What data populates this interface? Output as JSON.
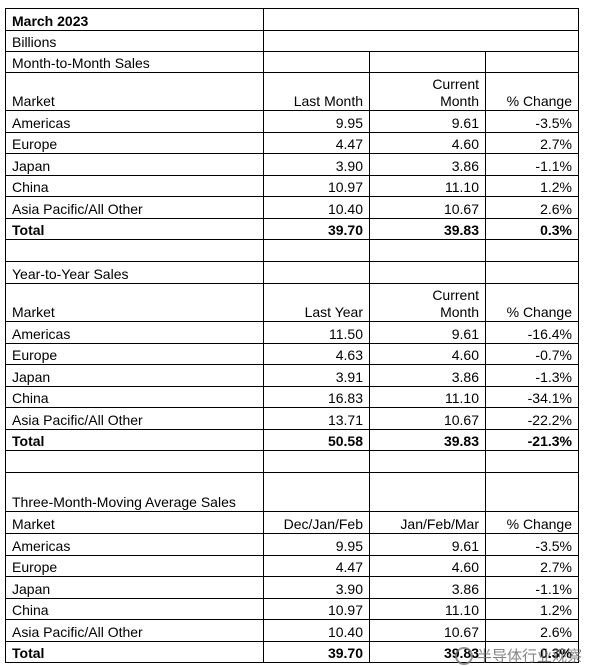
{
  "header": {
    "title": "March 2023",
    "unit": "Billions"
  },
  "sections": [
    {
      "title": "Month-to-Month Sales",
      "columns": [
        "Market",
        "Last Month",
        "Current Month",
        "% Change"
      ],
      "rows": [
        [
          "Americas",
          "9.95",
          "9.61",
          "-3.5%"
        ],
        [
          "Europe",
          "4.47",
          "4.60",
          "2.7%"
        ],
        [
          "Japan",
          "3.90",
          "3.86",
          "-1.1%"
        ],
        [
          "China",
          "10.97",
          "11.10",
          "1.2%"
        ],
        [
          "Asia Pacific/All Other",
          "10.40",
          "10.67",
          "2.6%"
        ]
      ],
      "total": [
        "Total",
        "39.70",
        "39.83",
        "0.3%"
      ]
    },
    {
      "title": "Year-to-Year Sales",
      "columns": [
        "Market",
        "Last Year",
        "Current Month",
        "% Change"
      ],
      "rows": [
        [
          "Americas",
          "11.50",
          "9.61",
          "-16.4%"
        ],
        [
          "Europe",
          "4.63",
          "4.60",
          "-0.7%"
        ],
        [
          "Japan",
          "3.91",
          "3.86",
          "-1.3%"
        ],
        [
          "China",
          "16.83",
          "11.10",
          "-34.1%"
        ],
        [
          "Asia Pacific/All Other",
          "13.71",
          "10.67",
          "-22.2%"
        ]
      ],
      "total": [
        "Total",
        "50.58",
        "39.83",
        "-21.3%"
      ]
    },
    {
      "title": "Three-Month-Moving Average Sales",
      "columns": [
        "Market",
        "Dec/Jan/Feb",
        "Jan/Feb/Mar",
        "% Change"
      ],
      "rows": [
        [
          "Americas",
          "9.95",
          "9.61",
          "-3.5%"
        ],
        [
          "Europe",
          "4.47",
          "4.60",
          "2.7%"
        ],
        [
          "Japan",
          "3.90",
          "3.86",
          "-1.1%"
        ],
        [
          "China",
          "10.97",
          "11.10",
          "1.2%"
        ],
        [
          "Asia Pacific/All Other",
          "10.40",
          "10.67",
          "2.6%"
        ]
      ],
      "total": [
        "Total",
        "39.70",
        "39.83",
        "0.3%"
      ]
    }
  ],
  "watermark": "半导体行业观察"
}
